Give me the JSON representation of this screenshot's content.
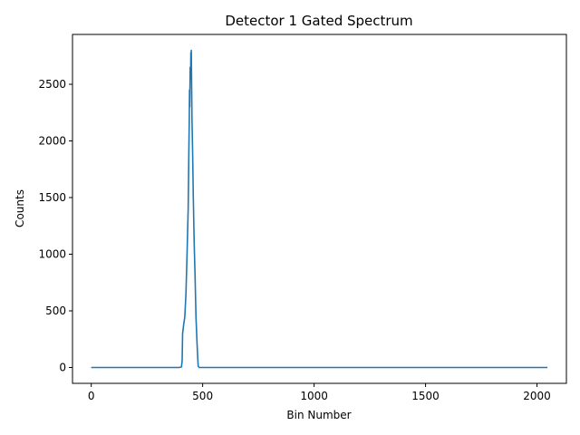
{
  "chart_data": {
    "type": "line",
    "title": "Detector 1 Gated Spectrum",
    "xlabel": "Bin Number",
    "ylabel": "Counts",
    "xlim": [
      -84,
      2132
    ],
    "ylim": [
      -140,
      2940
    ],
    "xticks": [
      0,
      500,
      1000,
      1500,
      2000
    ],
    "yticks": [
      0,
      500,
      1000,
      1500,
      2000,
      2500
    ],
    "grid": false,
    "series": [
      {
        "color": "#1f77b4",
        "points": [
          [
            0,
            0
          ],
          [
            100,
            0
          ],
          [
            200,
            0
          ],
          [
            300,
            0
          ],
          [
            395,
            0
          ],
          [
            405,
            5
          ],
          [
            408,
            60
          ],
          [
            410,
            300
          ],
          [
            415,
            380
          ],
          [
            420,
            450
          ],
          [
            425,
            650
          ],
          [
            430,
            1000
          ],
          [
            435,
            1400
          ],
          [
            438,
            1900
          ],
          [
            440,
            2200
          ],
          [
            441,
            2450
          ],
          [
            442,
            2300
          ],
          [
            444,
            2650
          ],
          [
            446,
            2550
          ],
          [
            447,
            2780
          ],
          [
            448,
            2700
          ],
          [
            449,
            2800
          ],
          [
            450,
            2600
          ],
          [
            452,
            2200
          ],
          [
            455,
            1900
          ],
          [
            458,
            1500
          ],
          [
            462,
            1100
          ],
          [
            466,
            800
          ],
          [
            470,
            450
          ],
          [
            474,
            250
          ],
          [
            477,
            120
          ],
          [
            480,
            10
          ],
          [
            485,
            0
          ],
          [
            600,
            0
          ],
          [
            800,
            0
          ],
          [
            1000,
            0
          ],
          [
            1200,
            0
          ],
          [
            1400,
            0
          ],
          [
            1600,
            0
          ],
          [
            1800,
            0
          ],
          [
            2000,
            0
          ],
          [
            2047,
            0
          ]
        ]
      }
    ]
  }
}
